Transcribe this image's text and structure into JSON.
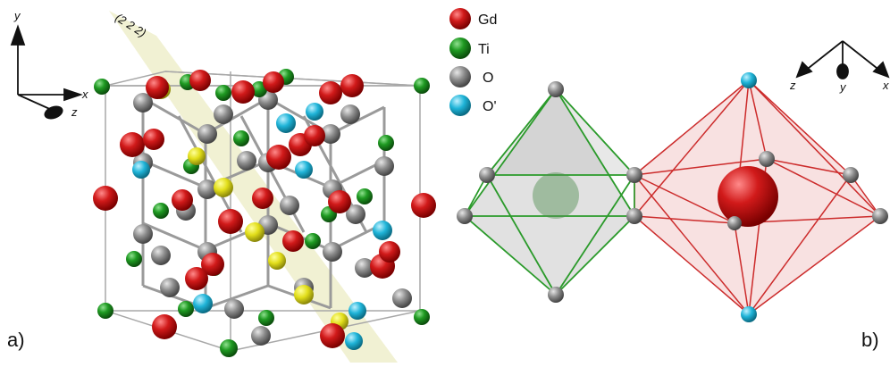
{
  "panels": {
    "a_label": "a)",
    "b_label": "b)"
  },
  "plane_label": "(2 2 2)",
  "axes_a": {
    "y": "y",
    "x": "x",
    "z": "z"
  },
  "axes_b": {
    "z": "z",
    "y": "y",
    "x": "x"
  },
  "legend": [
    {
      "label": "Gd",
      "color": "#d11a1a"
    },
    {
      "label": "Ti",
      "color": "#1f9a22"
    },
    {
      "label": "O",
      "color": "#8c8c8c"
    },
    {
      "label": "O'",
      "color": "#1fb4d8"
    }
  ],
  "colors": {
    "gd": "#d11a1a",
    "ti": "#1f9a22",
    "o": "#8c8c8c",
    "o_prime": "#1fb4d8",
    "plane": "#eeeec8",
    "ti_octa": "#2a9a2a",
    "gd_poly": "#cc2b2b",
    "bond": "#9a9a9a"
  }
}
